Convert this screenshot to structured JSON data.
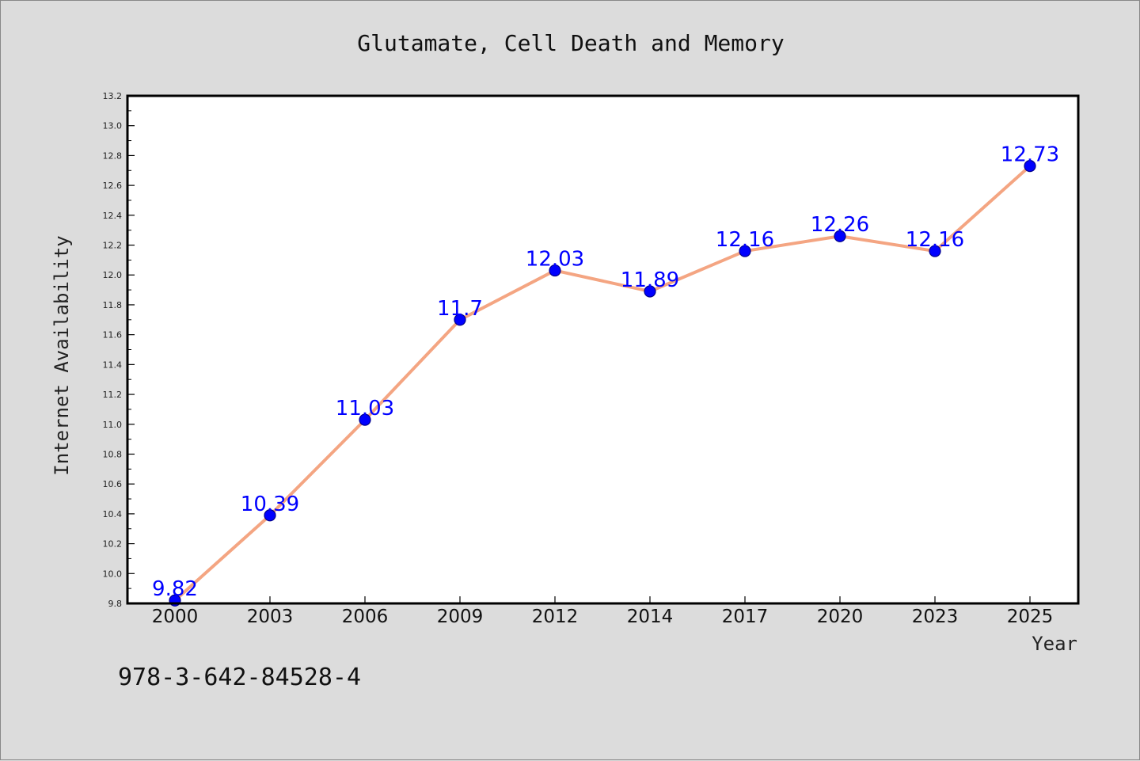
{
  "chart_data": {
    "type": "line",
    "title": "Glutamate, Cell Death and Memory",
    "xlabel": "Year",
    "ylabel": "Internet Availability",
    "categories": [
      "2000",
      "2003",
      "2006",
      "2009",
      "2012",
      "2014",
      "2017",
      "2020",
      "2023",
      "2025"
    ],
    "series": [
      {
        "values": [
          9.82,
          10.39,
          11.03,
          11.7,
          12.03,
          11.89,
          12.16,
          12.26,
          12.16,
          12.73
        ],
        "data_labels": [
          "9.82",
          "10.39",
          "11.03",
          "11.7",
          "12.03",
          "11.89",
          "12.16",
          "12.26",
          "12.16",
          "12.73"
        ]
      }
    ],
    "ylim": [
      9.8,
      13.2
    ],
    "yticks": [
      "9.8",
      "10.0",
      "10.2",
      "10.4",
      "10.6",
      "10.8",
      "11.0",
      "11.2",
      "11.4",
      "11.6",
      "11.8",
      "12.0",
      "12.2",
      "12.4",
      "12.6",
      "12.8",
      "13.0",
      "13.2"
    ],
    "grid": false,
    "legend": "none",
    "colors": {
      "line": "#f4a582",
      "marker": "#0000ff",
      "marker_edge": "#00008b",
      "data_label": "#0000ff",
      "background": "#dcdcdc",
      "plot_area": "#ffffff"
    }
  },
  "footer": {
    "isbn": "978-3-642-84528-4"
  }
}
